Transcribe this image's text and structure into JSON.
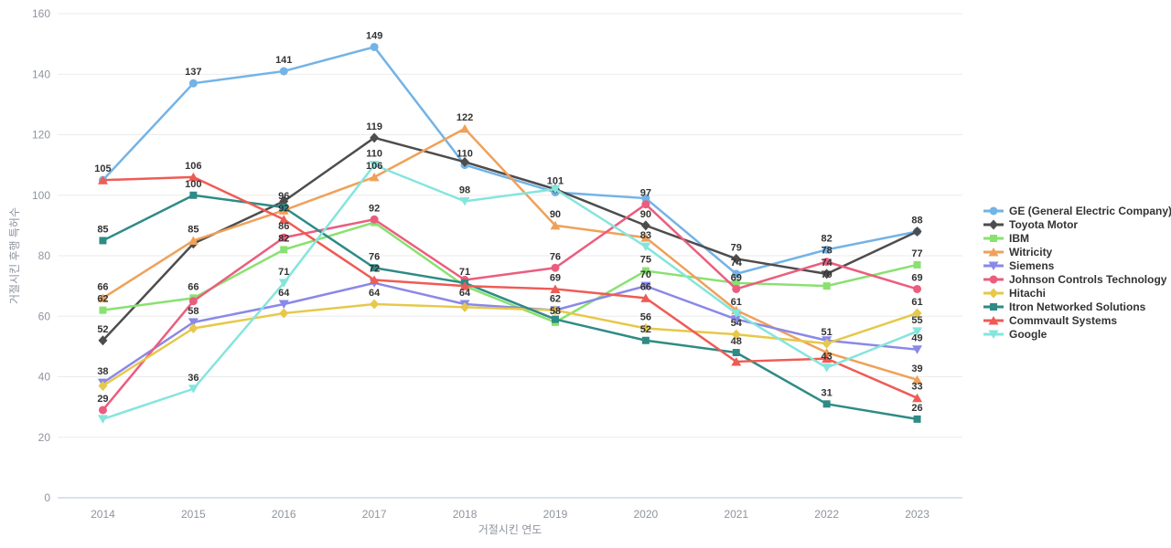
{
  "chart_data": {
    "type": "line",
    "title": "",
    "xlabel": "거절시킨 연도",
    "ylabel": "거절시킨 후행 특허수",
    "x": [
      "2014",
      "2015",
      "2016",
      "2017",
      "2018",
      "2019",
      "2020",
      "2021",
      "2022",
      "2023"
    ],
    "ylim": [
      0,
      160
    ],
    "ytick_interval": 20,
    "yticks": [
      "0",
      "20",
      "40",
      "60",
      "80",
      "100",
      "120",
      "140",
      "160"
    ],
    "grid": true,
    "legend_position": "right",
    "axis_text_color": "#8f949e",
    "grid_color": "#ebebeb",
    "axis_line_color": "#b9c4de",
    "label_color": "#333333",
    "series": [
      {
        "id": "ge",
        "name": "GE (General Electric Company)",
        "color": "#73b3e6",
        "marker": "circle",
        "values": [
          105,
          137,
          141,
          149,
          110,
          101,
          99,
          74,
          82,
          88
        ],
        "label_visible": [
          false,
          true,
          true,
          true,
          true,
          true,
          false,
          true,
          true,
          false
        ]
      },
      {
        "id": "toyota",
        "name": "Toyota Motor",
        "color": "#4d4d4d",
        "marker": "diamond",
        "values": [
          52,
          84,
          98,
          119,
          111,
          102,
          90,
          79,
          74,
          88
        ],
        "label_visible": [
          true,
          false,
          false,
          true,
          false,
          false,
          true,
          true,
          true,
          true
        ]
      },
      {
        "id": "ibm",
        "name": "IBM",
        "color": "#89e170",
        "marker": "square",
        "values": [
          62,
          66,
          82,
          91,
          70,
          58,
          75,
          71,
          70,
          77
        ],
        "label_visible": [
          true,
          true,
          true,
          false,
          false,
          true,
          true,
          false,
          true,
          true
        ]
      },
      {
        "id": "witricity",
        "name": "Witricity",
        "color": "#efa15a",
        "marker": "triangle-up",
        "values": [
          66,
          85,
          95,
          106,
          122,
          90,
          86,
          62,
          48,
          39
        ],
        "label_visible": [
          true,
          true,
          false,
          true,
          true,
          true,
          false,
          false,
          false,
          true
        ]
      },
      {
        "id": "siemens",
        "name": "Siemens",
        "color": "#8a88e8",
        "marker": "triangle-down",
        "values": [
          38,
          58,
          64,
          71,
          64,
          62,
          70,
          59,
          52,
          49
        ],
        "label_visible": [
          true,
          true,
          true,
          false,
          true,
          false,
          true,
          false,
          false,
          true
        ]
      },
      {
        "id": "johnson-controls",
        "name": "Johnson Controls Technology",
        "color": "#eb5d7e",
        "marker": "circle",
        "values": [
          29,
          65,
          86,
          92,
          72,
          76,
          97,
          69,
          78,
          69
        ],
        "label_visible": [
          true,
          false,
          true,
          true,
          false,
          true,
          true,
          true,
          true,
          true
        ]
      },
      {
        "id": "hitachi",
        "name": "Hitachi",
        "color": "#e6c84a",
        "marker": "diamond",
        "values": [
          37,
          56,
          61,
          64,
          63,
          62,
          56,
          54,
          51,
          61
        ],
        "label_visible": [
          false,
          false,
          false,
          true,
          false,
          true,
          true,
          true,
          true,
          true
        ]
      },
      {
        "id": "itron",
        "name": "Itron Networked Solutions",
        "color": "#2f8b85",
        "marker": "square",
        "values": [
          85,
          100,
          96,
          76,
          71,
          59,
          52,
          48,
          31,
          26
        ],
        "label_visible": [
          true,
          true,
          true,
          true,
          true,
          false,
          true,
          true,
          true,
          true
        ]
      },
      {
        "id": "commvault",
        "name": "Commvault Systems",
        "color": "#ef5b55",
        "marker": "triangle-up",
        "values": [
          105,
          106,
          92,
          72,
          70,
          69,
          66,
          45,
          46,
          33
        ],
        "label_visible": [
          true,
          true,
          true,
          true,
          false,
          true,
          true,
          false,
          false,
          true
        ]
      },
      {
        "id": "google",
        "name": "Google",
        "color": "#85e5dd",
        "marker": "triangle-down",
        "values": [
          26,
          36,
          71,
          110,
          98,
          102,
          83,
          61,
          43,
          55
        ],
        "label_visible": [
          false,
          true,
          true,
          true,
          true,
          false,
          true,
          true,
          true,
          true
        ]
      }
    ]
  }
}
